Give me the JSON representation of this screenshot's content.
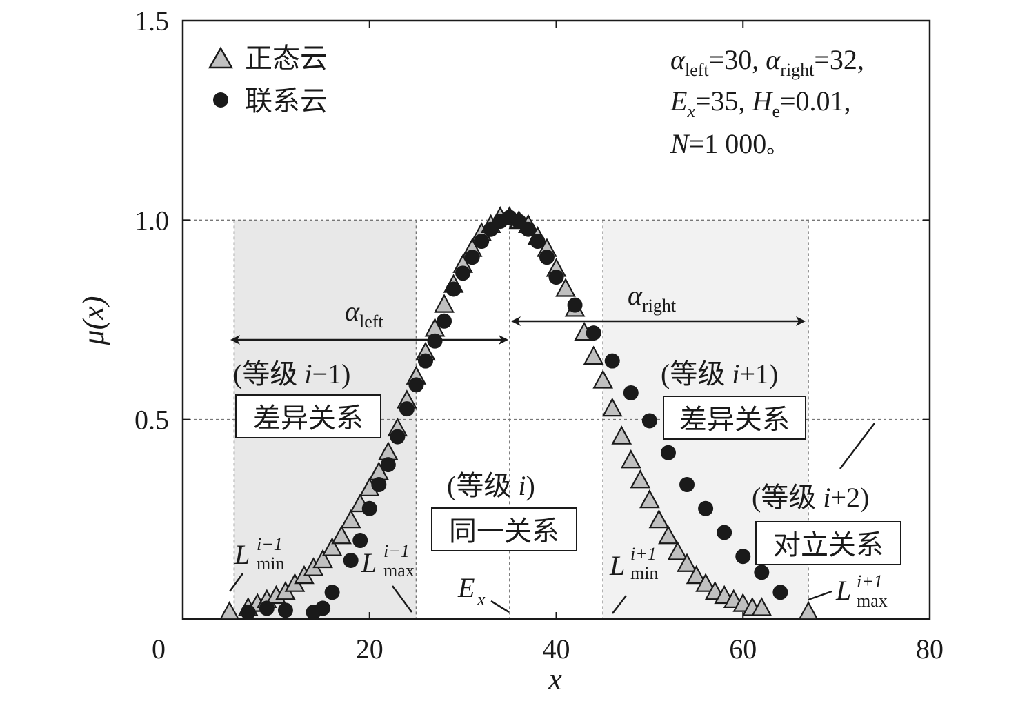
{
  "chart_data": {
    "type": "scatter",
    "xlabel": "x",
    "ylabel": "μ(x)",
    "xlim": [
      0,
      80
    ],
    "ylim": [
      0,
      1.5
    ],
    "x_ticks": [
      "0",
      "20",
      "40",
      "60",
      "80"
    ],
    "y_ticks": [
      "0.5",
      "1.0",
      "1.5"
    ],
    "x_tick_values": [
      0,
      20,
      40,
      60,
      80
    ],
    "y_tick_values": [
      0.5,
      1.0,
      1.5
    ],
    "grid": true,
    "legend_position": "top-left",
    "params_lines": [
      "α_left=30, α_right=32,",
      "E_x=35, H_e=0.01,",
      "N=1 000。"
    ],
    "boundaries": {
      "L_min_i_minus_1": 5,
      "L_max_i_minus_1": 25,
      "Ex": 35,
      "L_min_i_plus_1": 45,
      "L_max_i_plus_1": 67
    },
    "series": [
      {
        "name": "正态云",
        "marker": "triangle",
        "color": "#c0c0c0",
        "points": [
          [
            5,
            0.01
          ],
          [
            7,
            0.02
          ],
          [
            8,
            0.03
          ],
          [
            9,
            0.04
          ],
          [
            10,
            0.05
          ],
          [
            11,
            0.06
          ],
          [
            12,
            0.08
          ],
          [
            13,
            0.1
          ],
          [
            14,
            0.12
          ],
          [
            15,
            0.14
          ],
          [
            16,
            0.17
          ],
          [
            17,
            0.2
          ],
          [
            18,
            0.24
          ],
          [
            19,
            0.28
          ],
          [
            20,
            0.32
          ],
          [
            21,
            0.36
          ],
          [
            22,
            0.41
          ],
          [
            23,
            0.47
          ],
          [
            24,
            0.54
          ],
          [
            25,
            0.6
          ],
          [
            26,
            0.66
          ],
          [
            27,
            0.72
          ],
          [
            28,
            0.78
          ],
          [
            29,
            0.83
          ],
          [
            30,
            0.88
          ],
          [
            31,
            0.92
          ],
          [
            32,
            0.96
          ],
          [
            33,
            0.98
          ],
          [
            34,
            1.0
          ],
          [
            35,
            1.0
          ],
          [
            36,
            0.99
          ],
          [
            37,
            0.98
          ],
          [
            38,
            0.95
          ],
          [
            39,
            0.92
          ],
          [
            40,
            0.87
          ],
          [
            41,
            0.82
          ],
          [
            42,
            0.77
          ],
          [
            43,
            0.71
          ],
          [
            44,
            0.65
          ],
          [
            45,
            0.59
          ],
          [
            46,
            0.52
          ],
          [
            47,
            0.45
          ],
          [
            48,
            0.39
          ],
          [
            49,
            0.34
          ],
          [
            50,
            0.29
          ],
          [
            51,
            0.24
          ],
          [
            52,
            0.2
          ],
          [
            53,
            0.16
          ],
          [
            54,
            0.13
          ],
          [
            55,
            0.1
          ],
          [
            56,
            0.08
          ],
          [
            57,
            0.06
          ],
          [
            58,
            0.05
          ],
          [
            59,
            0.04
          ],
          [
            60,
            0.03
          ],
          [
            61,
            0.02
          ],
          [
            62,
            0.02
          ],
          [
            67,
            0.01
          ]
        ]
      },
      {
        "name": "联系云",
        "marker": "circle",
        "color": "#1a1a1a",
        "points": [
          [
            7,
            0.01
          ],
          [
            9,
            0.02
          ],
          [
            11,
            0.015
          ],
          [
            14,
            0.01
          ],
          [
            15,
            0.02
          ],
          [
            16,
            0.06
          ],
          [
            18,
            0.14
          ],
          [
            19,
            0.19
          ],
          [
            20,
            0.27
          ],
          [
            21,
            0.33
          ],
          [
            22,
            0.38
          ],
          [
            23,
            0.45
          ],
          [
            24,
            0.52
          ],
          [
            25,
            0.58
          ],
          [
            26,
            0.64
          ],
          [
            27,
            0.69
          ],
          [
            28,
            0.74
          ],
          [
            29,
            0.82
          ],
          [
            30,
            0.86
          ],
          [
            31,
            0.9
          ],
          [
            32,
            0.94
          ],
          [
            33,
            0.97
          ],
          [
            34,
            0.99
          ],
          [
            35,
            1.0
          ],
          [
            36,
            0.99
          ],
          [
            37,
            0.97
          ],
          [
            38,
            0.94
          ],
          [
            39,
            0.9
          ],
          [
            40,
            0.85
          ],
          [
            42,
            0.78
          ],
          [
            44,
            0.71
          ],
          [
            46,
            0.64
          ],
          [
            48,
            0.56
          ],
          [
            50,
            0.49
          ],
          [
            52,
            0.41
          ],
          [
            54,
            0.33
          ],
          [
            56,
            0.27
          ],
          [
            58,
            0.21
          ],
          [
            60,
            0.15
          ],
          [
            62,
            0.11
          ],
          [
            64,
            0.06
          ]
        ]
      }
    ],
    "annotations": {
      "alpha_left_label": "αleft",
      "alpha_right_label": "αright",
      "grade_i_minus_1": "(等级 i−1)",
      "grade_i": "(等级 i)",
      "grade_i_plus_1": "(等级 i+1)",
      "grade_i_plus_2": "(等级 i+2)",
      "box_diff_left": "差异关系",
      "box_same": "同一关系",
      "box_diff_right": "差异关系",
      "box_opposite": "对立关系",
      "L_min_im1": "L",
      "L_max_im1": "L",
      "L_min_ip1": "L",
      "L_max_ip1": "L",
      "Ex_label": "E"
    }
  }
}
